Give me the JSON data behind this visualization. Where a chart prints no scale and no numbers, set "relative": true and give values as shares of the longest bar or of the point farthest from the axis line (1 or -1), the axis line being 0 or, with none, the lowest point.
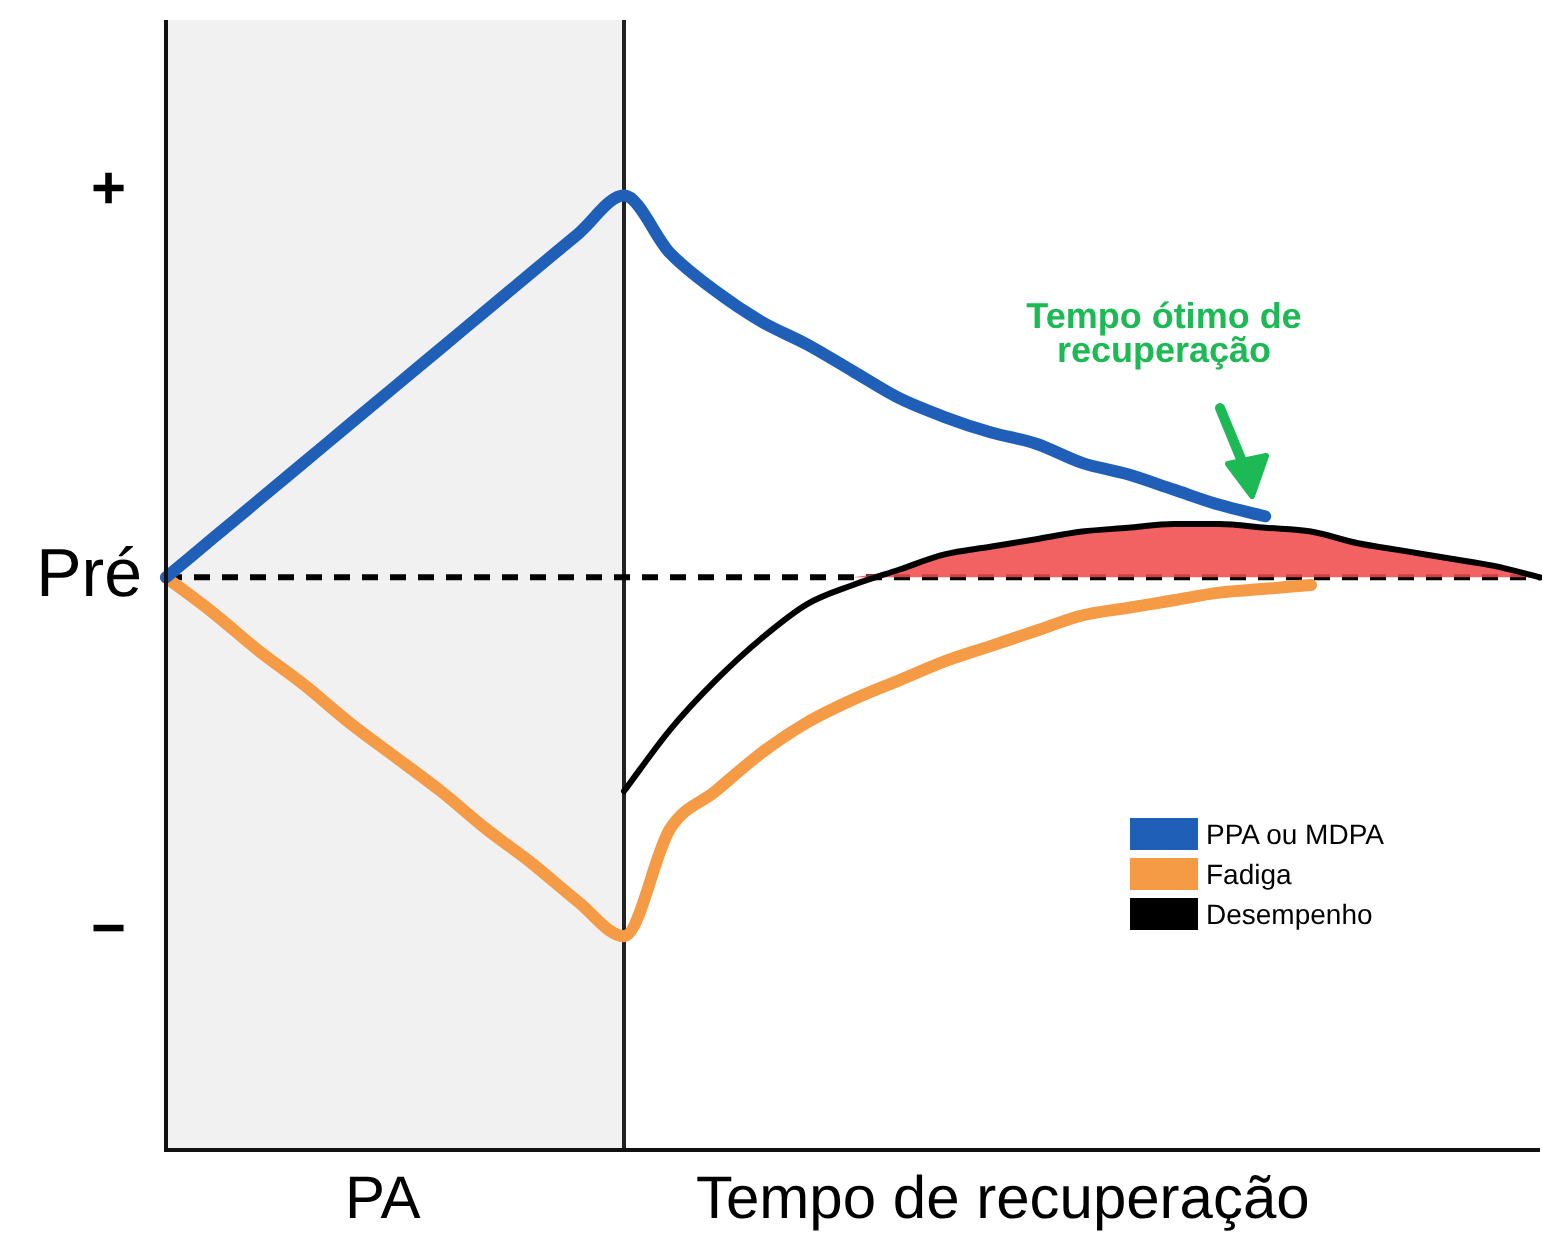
{
  "chart_data": {
    "type": "line",
    "relative": true,
    "categories": [
      null,
      null,
      null,
      null,
      null,
      null,
      null,
      null,
      null,
      null,
      null,
      null,
      null,
      null,
      null,
      null,
      null,
      null,
      null,
      null,
      null,
      null,
      null,
      null,
      null,
      null,
      null,
      null,
      null,
      null,
      null
    ],
    "series": [
      {
        "name": "PPA ou MDPA",
        "color": "#1f5fb8",
        "values": [
          0,
          0.1,
          0.2,
          0.3,
          0.4,
          0.5,
          0.6,
          0.7,
          0.8,
          0.9,
          1,
          0.85,
          0.75,
          0.67,
          0.61,
          0.54,
          0.47,
          0.42,
          0.38,
          0.35,
          0.3,
          0.27,
          0.23,
          0.19,
          0.16,
          null,
          null,
          null,
          null,
          null,
          null
        ]
      },
      {
        "name": "Fadiga",
        "color": "#f59a45",
        "values": [
          0,
          -0.09,
          -0.19,
          -0.28,
          -0.38,
          -0.47,
          -0.56,
          -0.66,
          -0.75,
          -0.85,
          -0.94,
          -0.66,
          -0.56,
          -0.46,
          -0.38,
          -0.32,
          -0.27,
          -0.22,
          -0.18,
          -0.14,
          -0.1,
          -0.08,
          -0.06,
          -0.04,
          -0.03,
          -0.02,
          null,
          null,
          null,
          null,
          null
        ]
      },
      {
        "name": "Desempenho",
        "color": "#000000",
        "values": [
          null,
          null,
          null,
          null,
          null,
          null,
          null,
          null,
          null,
          null,
          -0.56,
          -0.4,
          -0.27,
          -0.16,
          -0.07,
          -0.02,
          0.02,
          0.06,
          0.08,
          0.1,
          0.12,
          0.13,
          0.14,
          0.14,
          0.13,
          0.12,
          0.09,
          0.07,
          0.05,
          0.03,
          0
        ]
      },
      {
        "type": "area",
        "color": "#f04a4a",
        "values": [
          null,
          null,
          null,
          null,
          null,
          null,
          null,
          null,
          null,
          null,
          null,
          null,
          null,
          null,
          null,
          0,
          0.02,
          0.06,
          0.08,
          0.1,
          0.12,
          0.13,
          0.14,
          0.14,
          0.13,
          0.12,
          0.09,
          0.07,
          0.05,
          0.03,
          0
        ]
      }
    ],
    "ref_lines": [
      {
        "axis": "y",
        "value": 0,
        "label": "Pré",
        "color": "#000000",
        "line_style": "dashed"
      }
    ],
    "annotations": [
      "+",
      "−",
      "PA",
      "Tempo de recuperação",
      "Tempo ótimo de recuperação"
    ],
    "legend": "bottom right",
    "marker": "none"
  }
}
